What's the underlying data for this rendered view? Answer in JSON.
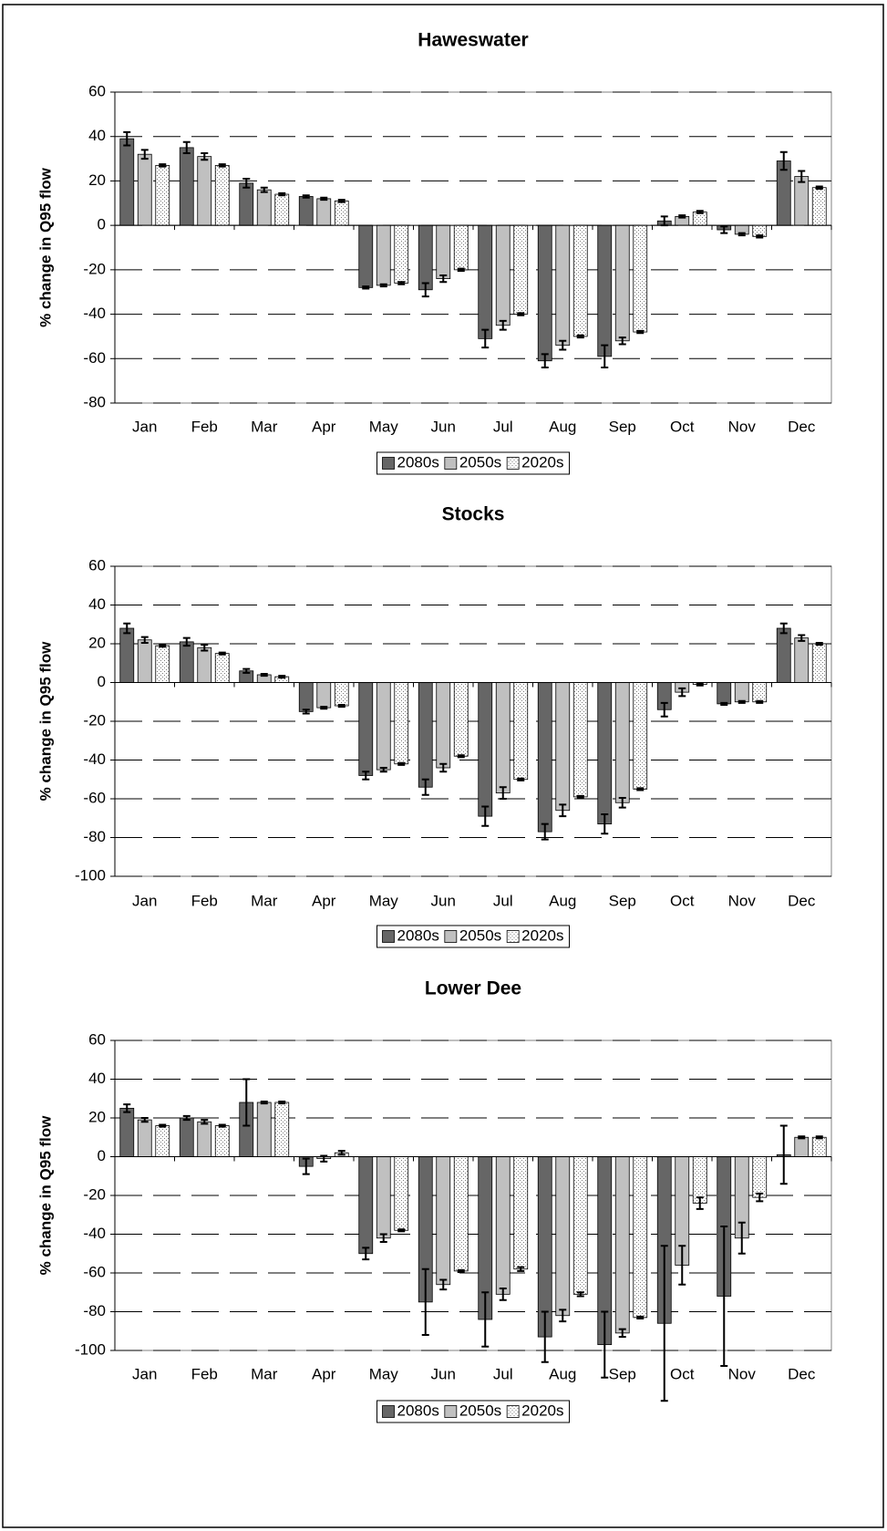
{
  "chart_data": [
    {
      "type": "bar",
      "title": "Haweswater",
      "y_label": "% change in Q95 flow",
      "categories": [
        "Jan",
        "Feb",
        "Mar",
        "Apr",
        "May",
        "Jun",
        "Jul",
        "Aug",
        "Sep",
        "Oct",
        "Nov",
        "Dec"
      ],
      "ylim": [
        -80,
        60
      ],
      "yticks": [
        -80,
        -60,
        -40,
        -20,
        0,
        20,
        40,
        60
      ],
      "grid": true,
      "series": [
        {
          "name": "2080s",
          "color": "#666666",
          "values": [
            39,
            35,
            19,
            13,
            -28,
            -29,
            -51,
            -61,
            -59,
            2,
            -2,
            29
          ],
          "errors": [
            3,
            2.5,
            2,
            0.5,
            0.5,
            3,
            4,
            3,
            5,
            2,
            1.5,
            4
          ]
        },
        {
          "name": "2050s",
          "color": "#c0c0c0",
          "values": [
            32,
            31,
            16,
            12,
            -27,
            -24,
            -45,
            -54,
            -52,
            4,
            -4,
            22
          ],
          "errors": [
            2,
            1.5,
            1,
            0.5,
            0.5,
            1.5,
            2,
            2,
            1.5,
            0.5,
            0.5,
            2.5
          ]
        },
        {
          "name": "2020s",
          "color": "#ffffff",
          "pattern": "dots",
          "values": [
            27,
            27,
            14,
            11,
            -26,
            -20,
            -40,
            -50,
            -48,
            6,
            -5,
            17
          ],
          "errors": [
            0.5,
            0.5,
            0.5,
            0.5,
            0.5,
            0.5,
            0.5,
            0.5,
            0.5,
            0.5,
            0.5,
            0.5
          ]
        }
      ]
    },
    {
      "type": "bar",
      "title": "Stocks",
      "y_label": "% change in Q95 flow",
      "categories": [
        "Jan",
        "Feb",
        "Mar",
        "Apr",
        "May",
        "Jun",
        "Jul",
        "Aug",
        "Sep",
        "Oct",
        "Nov",
        "Dec"
      ],
      "ylim": [
        -100,
        60
      ],
      "yticks": [
        -100,
        -80,
        -60,
        -40,
        -20,
        0,
        20,
        40,
        60
      ],
      "grid": true,
      "series": [
        {
          "name": "2080s",
          "color": "#666666",
          "values": [
            28,
            21,
            6,
            -15,
            -48,
            -54,
            -69,
            -77,
            -73,
            -14,
            -11,
            28
          ],
          "errors": [
            2.5,
            2,
            1,
            1,
            2,
            4,
            5,
            4,
            5,
            3.5,
            0.5,
            2.5
          ]
        },
        {
          "name": "2050s",
          "color": "#c0c0c0",
          "values": [
            22,
            18,
            4,
            -13,
            -45,
            -44,
            -57,
            -66,
            -62,
            -5,
            -10,
            23
          ],
          "errors": [
            1.5,
            1.5,
            0.5,
            0.5,
            1,
            2,
            3,
            3,
            2.5,
            2,
            0.5,
            1.5
          ]
        },
        {
          "name": "2020s",
          "color": "#ffffff",
          "pattern": "dots",
          "values": [
            19,
            15,
            3,
            -12,
            -42,
            -38,
            -50,
            -59,
            -55,
            -1,
            -10,
            20
          ],
          "errors": [
            0.5,
            0.5,
            0.5,
            0.5,
            0.5,
            0.5,
            0.5,
            0.5,
            0.5,
            0.5,
            0.5,
            0.5
          ]
        }
      ]
    },
    {
      "type": "bar",
      "title": "Lower Dee",
      "y_label": "% change in Q95 flow",
      "categories": [
        "Jan",
        "Feb",
        "Mar",
        "Apr",
        "May",
        "Jun",
        "Jul",
        "Aug",
        "Sep",
        "Oct",
        "Nov",
        "Dec"
      ],
      "ylim": [
        -100,
        60
      ],
      "yticks": [
        -100,
        -80,
        -60,
        -40,
        -20,
        0,
        20,
        40,
        60
      ],
      "grid": true,
      "series": [
        {
          "name": "2080s",
          "color": "#666666",
          "values": [
            25,
            20,
            28,
            -5,
            -50,
            -75,
            -84,
            -93,
            -97,
            -86,
            -72,
            1
          ],
          "errors": [
            2,
            1,
            12,
            4,
            3,
            17,
            14,
            13,
            17,
            40,
            36,
            15
          ]
        },
        {
          "name": "2050s",
          "color": "#c0c0c0",
          "values": [
            19,
            18,
            28,
            -1,
            -42,
            -66,
            -71,
            -82,
            -91,
            -56,
            -42,
            10
          ],
          "errors": [
            1,
            1,
            0.5,
            1.5,
            2,
            2.5,
            3,
            3,
            2,
            10,
            8,
            0.5
          ]
        },
        {
          "name": "2020s",
          "color": "#ffffff",
          "pattern": "dots",
          "values": [
            16,
            16,
            28,
            2,
            -38,
            -59,
            -58,
            -71,
            -83,
            -24,
            -21,
            10
          ],
          "errors": [
            0.5,
            0.5,
            0.5,
            1,
            0.5,
            0.5,
            1,
            1,
            0.5,
            3,
            2,
            0.5
          ]
        }
      ]
    }
  ]
}
